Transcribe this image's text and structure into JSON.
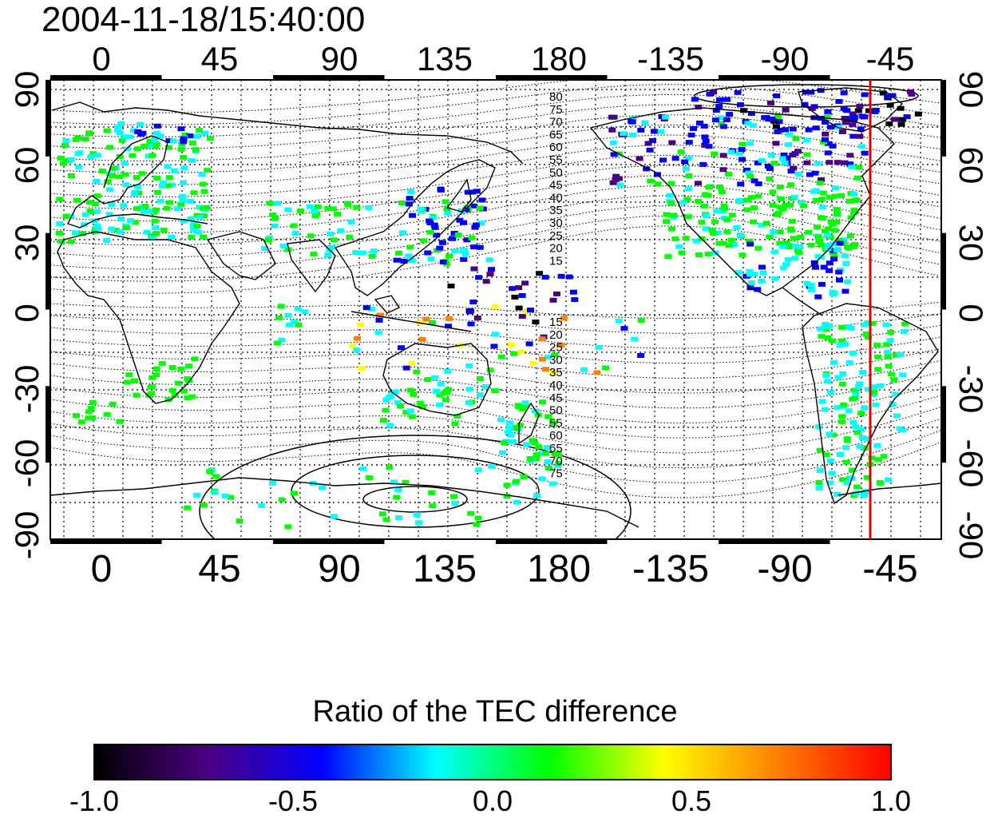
{
  "title": "2004-11-18/15:40:00",
  "map": {
    "lon_ticks": [
      "0",
      "45",
      "90",
      "135",
      "180",
      "-135",
      "-90",
      "-45"
    ],
    "lat_ticks": [
      "90",
      "60",
      "30",
      "0",
      "-30",
      "-60",
      "-90"
    ],
    "contour_labels_north": [
      "80",
      "75",
      "70",
      "65",
      "60",
      "55",
      "50",
      "45",
      "40",
      "35",
      "30",
      "25",
      "20",
      "15"
    ],
    "contour_labels_south": [
      "15",
      "20",
      "25",
      "30",
      "35",
      "40",
      "45",
      "50",
      "55",
      "60",
      "65",
      "70",
      "75"
    ],
    "marker_line_color": "#e00000",
    "coastline_color": "#000000",
    "grid": "dotted"
  },
  "colorbar": {
    "title": "Ratio of the TEC difference",
    "labels": [
      "-1.0",
      "-0.5",
      "0.0",
      "0.5",
      "1.0"
    ],
    "colormap": [
      "#000000",
      "#4b0082",
      "#0000ff",
      "#00ffff",
      "#00ff00",
      "#ffff00",
      "#ff8000",
      "#ff0000"
    ]
  }
}
